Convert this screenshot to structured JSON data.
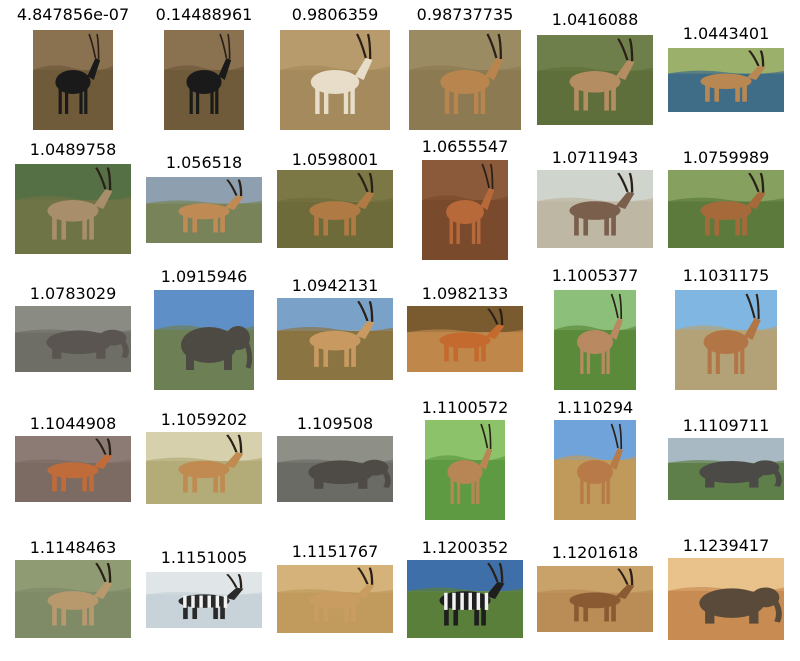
{
  "grid": [
    [
      {
        "label": "4.847856e-07",
        "scene": "sable-antelope",
        "colors": {
          "bg": "#6f5a3a",
          "animal": "#1a1a1a",
          "sky": "#8a7150"
        }
      },
      {
        "label": "0.14488961",
        "scene": "sable-antelope",
        "colors": {
          "bg": "#6f5a3a",
          "animal": "#1a1a1a",
          "sky": "#8a7150"
        }
      },
      {
        "label": "0.9806359",
        "scene": "addax",
        "colors": {
          "bg": "#a58a5d",
          "animal": "#e7ddc9",
          "sky": "#b79b6c"
        }
      },
      {
        "label": "0.98737735",
        "scene": "impala",
        "colors": {
          "bg": "#8c7a52",
          "animal": "#b9854e",
          "sky": "#9a8b63"
        }
      },
      {
        "label": "1.0416088",
        "scene": "antelope-grass",
        "colors": {
          "bg": "#5f6f3b",
          "animal": "#b58d62",
          "sky": "#6f7f4b"
        }
      },
      {
        "label": "1.0443401",
        "scene": "kob-water",
        "colors": {
          "bg": "#3f6c86",
          "animal": "#b88752",
          "sky": "#9bb06b"
        }
      }
    ],
    [
      {
        "label": "1.0489758",
        "scene": "antelope-bush",
        "colors": {
          "bg": "#6f7446",
          "animal": "#a88e6a",
          "sky": "#567045"
        }
      },
      {
        "label": "1.056518",
        "scene": "springbok",
        "colors": {
          "bg": "#78835a",
          "animal": "#c08a55",
          "sky": "#8ea0b0"
        }
      },
      {
        "label": "1.0598001",
        "scene": "pronghorn",
        "colors": {
          "bg": "#6e6b3a",
          "animal": "#b07a44",
          "sky": "#7c7845"
        }
      },
      {
        "label": "1.0655547",
        "scene": "impala-close",
        "colors": {
          "bg": "#7a4a2c",
          "animal": "#b7693a",
          "sky": "#8a5a3a"
        }
      },
      {
        "label": "1.0711943",
        "scene": "herd-gazelles",
        "colors": {
          "bg": "#bdb7a3",
          "animal": "#7a5f4c",
          "sky": "#cfd4cc"
        }
      },
      {
        "label": "1.0759989",
        "scene": "impala-savanna",
        "colors": {
          "bg": "#5b7a3c",
          "animal": "#a66a3a",
          "sky": "#86a060"
        }
      }
    ],
    [
      {
        "label": "1.0783029",
        "scene": "elephants-herd",
        "colors": {
          "bg": "#6e6e66",
          "animal": "#5a5550",
          "sky": "#8a8c84"
        }
      },
      {
        "label": "1.0915946",
        "scene": "elephant-sky",
        "colors": {
          "bg": "#6d7f54",
          "animal": "#4d4a44",
          "sky": "#5f8fc7"
        }
      },
      {
        "label": "1.0942131",
        "scene": "pronghorn-field",
        "colors": {
          "bg": "#8a7442",
          "animal": "#c89a62",
          "sky": "#7aa2c9"
        }
      },
      {
        "label": "1.0982133",
        "scene": "impala-group",
        "colors": {
          "bg": "#c0874a",
          "animal": "#c46a2f",
          "sky": "#7a5b2f"
        }
      },
      {
        "label": "1.1005377",
        "scene": "antelope-flowers",
        "colors": {
          "bg": "#5a8a3a",
          "animal": "#b98a62",
          "sky": "#8cbf7a"
        }
      },
      {
        "label": "1.1031175",
        "scene": "pronghorn-blue",
        "colors": {
          "bg": "#b3a277",
          "animal": "#b27646",
          "sky": "#7fb6e2"
        }
      }
    ],
    [
      {
        "label": "1.1044908",
        "scene": "pronghorn-shrub",
        "colors": {
          "bg": "#7b6b63",
          "animal": "#c06b3a",
          "sky": "#8c7b74"
        }
      },
      {
        "label": "1.1059202",
        "scene": "antelope-plain",
        "colors": {
          "bg": "#b3ab78",
          "animal": "#c08a50",
          "sky": "#d6d1ac"
        }
      },
      {
        "label": "1.109508",
        "scene": "elephants-water",
        "colors": {
          "bg": "#6b6b66",
          "animal": "#4e4b47",
          "sky": "#8e8f86"
        }
      },
      {
        "label": "1.1100572",
        "scene": "antelope-green",
        "colors": {
          "bg": "#5e9a42",
          "animal": "#b88654",
          "sky": "#8cc26a"
        }
      },
      {
        "label": "1.110294",
        "scene": "pronghorn-desert",
        "colors": {
          "bg": "#c09a5a",
          "animal": "#b77a48",
          "sky": "#6fa3d9"
        }
      },
      {
        "label": "1.1109711",
        "scene": "elephant-lake",
        "colors": {
          "bg": "#5f7f4a",
          "animal": "#4b4a47",
          "sky": "#a9b9c4"
        }
      }
    ],
    [
      {
        "label": "1.1148463",
        "scene": "antelope-scrub",
        "colors": {
          "bg": "#7f8a66",
          "animal": "#b8996e",
          "sky": "#8f9b73"
        }
      },
      {
        "label": "1.1151005",
        "scene": "zebras-water",
        "colors": {
          "bg": "#c7d3d8",
          "animal": "#2a2a2a",
          "sky": "#e0e6e8"
        }
      },
      {
        "label": "1.1151767",
        "scene": "saiga",
        "colors": {
          "bg": "#c19a5e",
          "animal": "#c99c62",
          "sky": "#d4b27a"
        }
      },
      {
        "label": "1.1200352",
        "scene": "zebra",
        "colors": {
          "bg": "#5a7f3a",
          "animal": "#1e1e1e",
          "sky": "#3f6fa8"
        }
      },
      {
        "label": "1.1201618",
        "scene": "fawn",
        "colors": {
          "bg": "#b98d55",
          "animal": "#8a5a33",
          "sky": "#c8a268"
        }
      },
      {
        "label": "1.1239417",
        "scene": "elephants-road",
        "colors": {
          "bg": "#c88b52",
          "animal": "#5a4a3a",
          "sky": "#e9c18a"
        }
      }
    ]
  ]
}
